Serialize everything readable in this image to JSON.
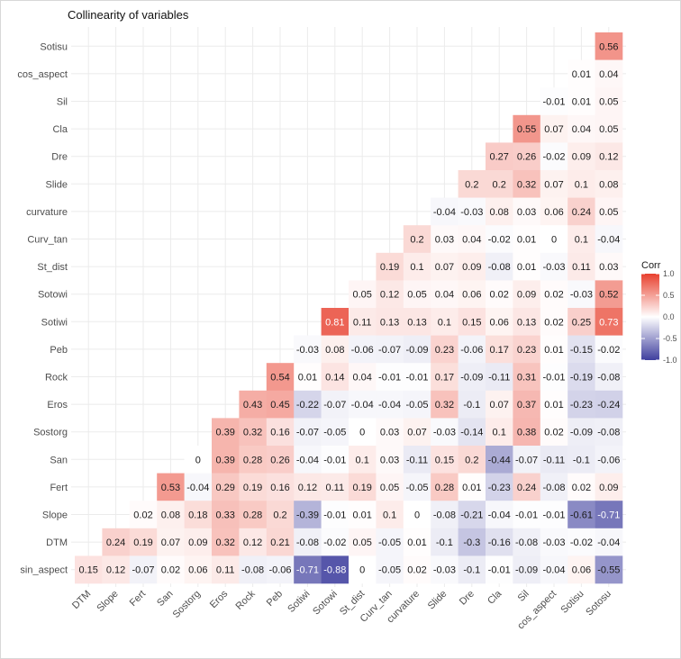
{
  "chart_data": {
    "type": "heatmap",
    "title": "Collinearity of variables",
    "x_categories": [
      "DTM",
      "Slope",
      "Fert",
      "San",
      "Sostorg",
      "Eros",
      "Rock",
      "Peb",
      "Sotiwi",
      "Sotowi",
      "St_dist",
      "Curv_tan",
      "curvature",
      "Slide",
      "Dre",
      "Cla",
      "Sil",
      "cos_aspect",
      "Sotisu",
      "Sotosu"
    ],
    "y_categories_top_to_bottom": [
      "Sotisu",
      "cos_aspect",
      "Sil",
      "Cla",
      "Dre",
      "Slide",
      "curvature",
      "Curv_tan",
      "St_dist",
      "Sotowi",
      "Sotiwi",
      "Peb",
      "Rock",
      "Eros",
      "Sostorg",
      "San",
      "Fert",
      "Slope",
      "DTM",
      "sin_aspect"
    ],
    "rows": [
      [
        "",
        "",
        "",
        "",
        "",
        "",
        "",
        "",
        "",
        "",
        "",
        "",
        "",
        "",
        "",
        "",
        "",
        "",
        "",
        "0.56"
      ],
      [
        "",
        "",
        "",
        "",
        "",
        "",
        "",
        "",
        "",
        "",
        "",
        "",
        "",
        "",
        "",
        "",
        "",
        "",
        "0.01",
        "0.04"
      ],
      [
        "",
        "",
        "",
        "",
        "",
        "",
        "",
        "",
        "",
        "",
        "",
        "",
        "",
        "",
        "",
        "",
        "",
        "-0.01",
        "0.01",
        "0.05"
      ],
      [
        "",
        "",
        "",
        "",
        "",
        "",
        "",
        "",
        "",
        "",
        "",
        "",
        "",
        "",
        "",
        "",
        "0.55",
        "0.07",
        "0.04",
        "0.05"
      ],
      [
        "",
        "",
        "",
        "",
        "",
        "",
        "",
        "",
        "",
        "",
        "",
        "",
        "",
        "",
        "",
        "0.27",
        "0.26",
        "-0.02",
        "0.09",
        "0.12"
      ],
      [
        "",
        "",
        "",
        "",
        "",
        "",
        "",
        "",
        "",
        "",
        "",
        "",
        "",
        "",
        "0.2",
        "0.2",
        "0.32",
        "0.07",
        "0.1",
        "0.08"
      ],
      [
        "",
        "",
        "",
        "",
        "",
        "",
        "",
        "",
        "",
        "",
        "",
        "",
        "",
        "-0.04",
        "-0.03",
        "0.08",
        "0.03",
        "0.06",
        "0.24",
        "0.05"
      ],
      [
        "",
        "",
        "",
        "",
        "",
        "",
        "",
        "",
        "",
        "",
        "",
        "",
        "0.2",
        "0.03",
        "0.04",
        "-0.02",
        "0.01",
        "0",
        "0.1",
        "-0.04"
      ],
      [
        "",
        "",
        "",
        "",
        "",
        "",
        "",
        "",
        "",
        "",
        "",
        "0.19",
        "0.1",
        "0.07",
        "0.09",
        "-0.08",
        "0.01",
        "-0.03",
        "0.11",
        "0.03"
      ],
      [
        "",
        "",
        "",
        "",
        "",
        "",
        "",
        "",
        "",
        "",
        "0.05",
        "0.12",
        "0.05",
        "0.04",
        "0.06",
        "0.02",
        "0.09",
        "0.02",
        "-0.03",
        "0.52"
      ],
      [
        "",
        "",
        "",
        "",
        "",
        "",
        "",
        "",
        "",
        "0.81",
        "0.11",
        "0.13",
        "0.13",
        "0.1",
        "0.15",
        "0.06",
        "0.13",
        "0.02",
        "0.25",
        "0.73"
      ],
      [
        "",
        "",
        "",
        "",
        "",
        "",
        "",
        "",
        "-0.03",
        "0.08",
        "-0.06",
        "-0.07",
        "-0.09",
        "0.23",
        "-0.06",
        "0.17",
        "0.23",
        "0.01",
        "-0.15",
        "-0.02"
      ],
      [
        "",
        "",
        "",
        "",
        "",
        "",
        "",
        "0.54",
        "0.01",
        "0.14",
        "0.04",
        "-0.01",
        "-0.01",
        "0.17",
        "-0.09",
        "-0.11",
        "0.31",
        "-0.01",
        "-0.19",
        "-0.08"
      ],
      [
        "",
        "",
        "",
        "",
        "",
        "",
        "0.43",
        "0.45",
        "-0.22",
        "-0.07",
        "-0.04",
        "-0.04",
        "-0.05",
        "0.32",
        "-0.1",
        "0.07",
        "0.37",
        "0.01",
        "-0.23",
        "-0.24"
      ],
      [
        "",
        "",
        "",
        "",
        "",
        "0.39",
        "0.32",
        "0.16",
        "-0.07",
        "-0.05",
        "0",
        "0.03",
        "0.07",
        "-0.03",
        "-0.14",
        "0.1",
        "0.38",
        "0.02",
        "-0.09",
        "-0.08"
      ],
      [
        "",
        "",
        "",
        "",
        "0",
        "0.39",
        "0.28",
        "0.26",
        "-0.04",
        "-0.01",
        "0.1",
        "0.03",
        "-0.11",
        "0.15",
        "0.2",
        "-0.44",
        "-0.07",
        "-0.11",
        "-0.1",
        "-0.06"
      ],
      [
        "",
        "",
        "",
        "0.53",
        "-0.04",
        "0.29",
        "0.19",
        "0.16",
        "0.12",
        "0.11",
        "0.19",
        "0.05",
        "-0.05",
        "0.28",
        "0.01",
        "-0.23",
        "0.24",
        "-0.08",
        "0.02",
        "0.09"
      ],
      [
        "",
        "",
        "0.02",
        "0.08",
        "0.18",
        "0.33",
        "0.28",
        "0.2",
        "-0.39",
        "-0.01",
        "0.01",
        "0.1",
        "0",
        "-0.08",
        "-0.21",
        "-0.04",
        "-0.01",
        "-0.01",
        "-0.61",
        "-0.71"
      ],
      [
        "",
        "0.24",
        "0.19",
        "0.07",
        "0.09",
        "0.32",
        "0.12",
        "0.21",
        "-0.08",
        "-0.02",
        "0.05",
        "-0.05",
        "0.01",
        "-0.1",
        "-0.3",
        "-0.16",
        "-0.08",
        "-0.03",
        "-0.02",
        "-0.04"
      ],
      [
        "0.15",
        "0.12",
        "-0.07",
        "0.02",
        "0.06",
        "0.11",
        "-0.08",
        "-0.06",
        "-0.71",
        "-0.88",
        "0",
        "-0.05",
        "0.02",
        "-0.03",
        "-0.1",
        "-0.01",
        "-0.09",
        "-0.04",
        "0.06",
        "-0.55"
      ]
    ],
    "legend": {
      "title": "Corr",
      "ticks": [
        "1.0",
        "0.5",
        "0.0",
        "-0.5",
        "-1.0"
      ],
      "tick_values": [
        1,
        0.5,
        0,
        -0.5,
        -1
      ],
      "position": "right"
    },
    "color_scale": {
      "low": "#3f3f9e",
      "mid": "#ffffff",
      "high": "#e8402e",
      "limits": [
        -1,
        1
      ]
    },
    "grid": true
  }
}
